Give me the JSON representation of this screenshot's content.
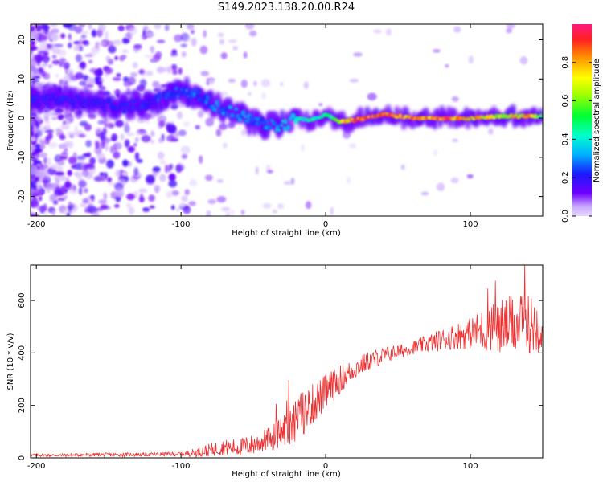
{
  "figure": {
    "title": "S149.2023.138.20.00.R24"
  },
  "chart_data": [
    {
      "type": "heatmap",
      "xlabel": "Height of straight line (km)",
      "ylabel": "Frequency (Hz)",
      "xlim": [
        -204,
        150
      ],
      "ylim": [
        -25,
        24
      ],
      "x_ticks": [
        -200,
        -100,
        0,
        100
      ],
      "y_ticks": [
        -20,
        -10,
        0,
        10,
        20
      ],
      "grid": false,
      "description_values": {
        "ridge_frequency_hz": [
          {
            "x": -180,
            "y": 4.5
          },
          {
            "x": -160,
            "y": 4
          },
          {
            "x": -140,
            "y": 3
          },
          {
            "x": -120,
            "y": 4
          },
          {
            "x": -100,
            "y": 7
          },
          {
            "x": -90,
            "y": 6
          },
          {
            "x": -80,
            "y": 4
          },
          {
            "x": -70,
            "y": 2
          },
          {
            "x": -60,
            "y": 1
          },
          {
            "x": -50,
            "y": -1
          },
          {
            "x": -40,
            "y": -1.5
          },
          {
            "x": -30,
            "y": -2
          },
          {
            "x": -20,
            "y": 0
          },
          {
            "x": -10,
            "y": -0.5
          },
          {
            "x": 0,
            "y": 1
          },
          {
            "x": 10,
            "y": -1
          },
          {
            "x": 20,
            "y": -0.5
          },
          {
            "x": 40,
            "y": 1
          },
          {
            "x": 60,
            "y": 0
          },
          {
            "x": 80,
            "y": 0
          },
          {
            "x": 100,
            "y": 0
          },
          {
            "x": 120,
            "y": 0.5
          },
          {
            "x": 140,
            "y": 0.5
          },
          {
            "x": 150,
            "y": 0.5
          }
        ],
        "ridge_amplitude": [
          {
            "x": -180,
            "a": 0.25
          },
          {
            "x": -140,
            "a": 0.25
          },
          {
            "x": -100,
            "a": 0.3
          },
          {
            "x": -60,
            "a": 0.35
          },
          {
            "x": -40,
            "a": 0.35
          },
          {
            "x": -20,
            "a": 0.45
          },
          {
            "x": 0,
            "a": 0.5
          },
          {
            "x": 20,
            "a": 0.95
          },
          {
            "x": 40,
            "a": 0.95
          },
          {
            "x": 60,
            "a": 0.95
          },
          {
            "x": 80,
            "a": 0.95
          },
          {
            "x": 100,
            "a": 0.85
          },
          {
            "x": 120,
            "a": 0.7
          },
          {
            "x": 140,
            "a": 0.85
          },
          {
            "x": 150,
            "a": 0.6
          }
        ]
      },
      "colorbar": {
        "label": "Normalized spectral amplitude",
        "range": [
          0,
          1
        ],
        "ticks": [
          "0.0",
          "0.2",
          "0.4",
          "0.6",
          "0.8"
        ],
        "colormap": "rainbow"
      },
      "colors": {
        "low": "#e6d9f7",
        "mid": "#6a00f0",
        "high": "#ff3030"
      }
    },
    {
      "type": "line",
      "xlabel": "Height of straight line (km)",
      "ylabel": "SNR (10 * v/v)",
      "xlim": [
        -204,
        150
      ],
      "ylim": [
        0,
        735
      ],
      "x_ticks": [
        -200,
        -100,
        0,
        100
      ],
      "y_ticks": [
        0,
        200,
        400,
        600
      ],
      "grid": false,
      "series": [
        {
          "color": "#ee3030",
          "points": [
            {
              "x": -204,
              "y": 10
            },
            {
              "x": -180,
              "y": 10
            },
            {
              "x": -160,
              "y": 12
            },
            {
              "x": -140,
              "y": 12
            },
            {
              "x": -120,
              "y": 13
            },
            {
              "x": -100,
              "y": 15
            },
            {
              "x": -90,
              "y": 20
            },
            {
              "x": -80,
              "y": 30
            },
            {
              "x": -70,
              "y": 40
            },
            {
              "x": -60,
              "y": 40
            },
            {
              "x": -50,
              "y": 50
            },
            {
              "x": -40,
              "y": 70
            },
            {
              "x": -30,
              "y": 100
            },
            {
              "x": -20,
              "y": 150
            },
            {
              "x": -10,
              "y": 200
            },
            {
              "x": 0,
              "y": 250
            },
            {
              "x": 10,
              "y": 300
            },
            {
              "x": 20,
              "y": 340
            },
            {
              "x": 30,
              "y": 370
            },
            {
              "x": 40,
              "y": 390
            },
            {
              "x": 50,
              "y": 405
            },
            {
              "x": 60,
              "y": 420
            },
            {
              "x": 70,
              "y": 435
            },
            {
              "x": 80,
              "y": 450
            },
            {
              "x": 90,
              "y": 465
            },
            {
              "x": 100,
              "y": 475
            },
            {
              "x": 110,
              "y": 490
            },
            {
              "x": 120,
              "y": 500
            },
            {
              "x": 130,
              "y": 510
            },
            {
              "x": 140,
              "y": 510
            },
            {
              "x": 150,
              "y": 505
            }
          ],
          "noise_amplitude": [
            {
              "x": -204,
              "a": 6
            },
            {
              "x": -100,
              "a": 8
            },
            {
              "x": -80,
              "a": 25
            },
            {
              "x": -40,
              "a": 45
            },
            {
              "x": -20,
              "a": 90
            },
            {
              "x": 0,
              "a": 70
            },
            {
              "x": 20,
              "a": 40
            },
            {
              "x": 60,
              "a": 25
            },
            {
              "x": 100,
              "a": 60
            },
            {
              "x": 120,
              "a": 110
            },
            {
              "x": 150,
              "a": 110
            }
          ]
        }
      ]
    }
  ]
}
